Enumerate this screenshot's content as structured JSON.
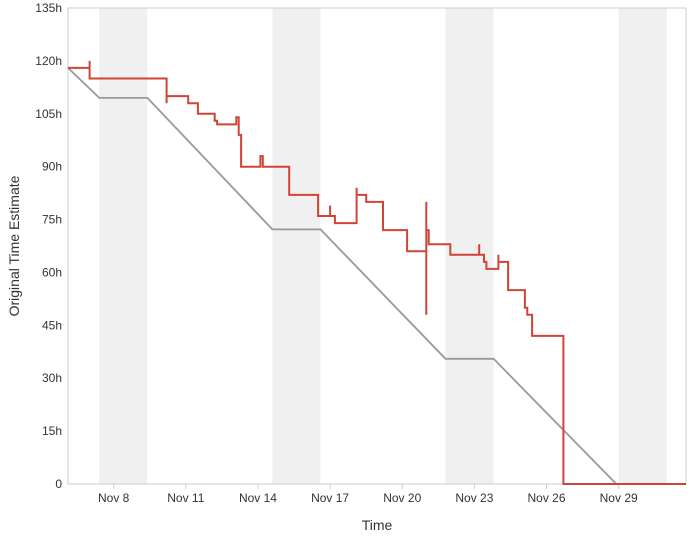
{
  "chart_data": {
    "type": "line",
    "title": "",
    "xlabel": "Time",
    "ylabel": "Original Time Estimate",
    "x_range": [
      6.1,
      31.8
    ],
    "y_range": [
      0,
      135
    ],
    "x_ticks": [
      {
        "x": 8,
        "label": "Nov 8"
      },
      {
        "x": 11,
        "label": "Nov 11"
      },
      {
        "x": 14,
        "label": "Nov 14"
      },
      {
        "x": 17,
        "label": "Nov 17"
      },
      {
        "x": 20,
        "label": "Nov 20"
      },
      {
        "x": 23,
        "label": "Nov 23"
      },
      {
        "x": 26,
        "label": "Nov 26"
      },
      {
        "x": 29,
        "label": "Nov 29"
      }
    ],
    "y_ticks": [
      {
        "y": 0,
        "label": "0"
      },
      {
        "y": 15,
        "label": "15h"
      },
      {
        "y": 30,
        "label": "30h"
      },
      {
        "y": 45,
        "label": "45h"
      },
      {
        "y": 60,
        "label": "60h"
      },
      {
        "y": 75,
        "label": "75h"
      },
      {
        "y": 90,
        "label": "90h"
      },
      {
        "y": 105,
        "label": "105h"
      },
      {
        "y": 120,
        "label": "120h"
      },
      {
        "y": 135,
        "label": "135h"
      }
    ],
    "non_working_periods": [
      [
        7.4,
        9.4
      ],
      [
        14.6,
        16.6
      ],
      [
        21.8,
        23.8
      ],
      [
        29.0,
        31.0
      ]
    ],
    "colors": {
      "guideline": "#999999",
      "remaining": "#d04437",
      "non_working": "#f0f0f0",
      "axis": "#cccccc"
    },
    "series": [
      {
        "key": "guideline",
        "points": [
          [
            6.1,
            118
          ],
          [
            7.4,
            109.5
          ],
          [
            9.4,
            109.5
          ],
          [
            14.6,
            72.2
          ],
          [
            16.6,
            72.2
          ],
          [
            21.8,
            35.5
          ],
          [
            23.8,
            35.5
          ],
          [
            28.9,
            0
          ],
          [
            31.8,
            0
          ]
        ]
      },
      {
        "key": "remaining",
        "points": [
          [
            6.1,
            118
          ],
          [
            7.0,
            118
          ],
          [
            7.0,
            120
          ],
          [
            7.0,
            115
          ],
          [
            10.2,
            115
          ],
          [
            10.2,
            108
          ],
          [
            10.2,
            110
          ],
          [
            11.1,
            110
          ],
          [
            11.1,
            108
          ],
          [
            11.5,
            108
          ],
          [
            11.5,
            105
          ],
          [
            12.2,
            105
          ],
          [
            12.2,
            103
          ],
          [
            12.3,
            103
          ],
          [
            12.3,
            102
          ],
          [
            13.1,
            102
          ],
          [
            13.1,
            104
          ],
          [
            13.2,
            104
          ],
          [
            13.2,
            99
          ],
          [
            13.3,
            99
          ],
          [
            13.3,
            90
          ],
          [
            14.1,
            90
          ],
          [
            14.1,
            93
          ],
          [
            14.2,
            93
          ],
          [
            14.2,
            90
          ],
          [
            15.3,
            90
          ],
          [
            15.3,
            82
          ],
          [
            16.5,
            82
          ],
          [
            16.5,
            76
          ],
          [
            17.0,
            76
          ],
          [
            17.0,
            79
          ],
          [
            17.0,
            76
          ],
          [
            17.2,
            76
          ],
          [
            17.2,
            74
          ],
          [
            18.1,
            74
          ],
          [
            18.1,
            84
          ],
          [
            18.1,
            82
          ],
          [
            18.5,
            82
          ],
          [
            18.5,
            80
          ],
          [
            19.2,
            80
          ],
          [
            19.2,
            72
          ],
          [
            20.2,
            72
          ],
          [
            20.2,
            66
          ],
          [
            21.0,
            66
          ],
          [
            21.0,
            48
          ],
          [
            21.0,
            80
          ],
          [
            21.0,
            72
          ],
          [
            21.1,
            72
          ],
          [
            21.1,
            68
          ],
          [
            22.0,
            68
          ],
          [
            22.0,
            65
          ],
          [
            23.2,
            65
          ],
          [
            23.2,
            68
          ],
          [
            23.2,
            65
          ],
          [
            23.4,
            65
          ],
          [
            23.4,
            63
          ],
          [
            23.5,
            63
          ],
          [
            23.5,
            61
          ],
          [
            24.0,
            61
          ],
          [
            24.0,
            65
          ],
          [
            24.0,
            63
          ],
          [
            24.4,
            63
          ],
          [
            24.4,
            55
          ],
          [
            25.1,
            55
          ],
          [
            25.1,
            50
          ],
          [
            25.2,
            50
          ],
          [
            25.2,
            48
          ],
          [
            25.4,
            48
          ],
          [
            25.4,
            42
          ],
          [
            26.7,
            42
          ],
          [
            26.7,
            0
          ],
          [
            31.8,
            0
          ]
        ]
      }
    ]
  }
}
